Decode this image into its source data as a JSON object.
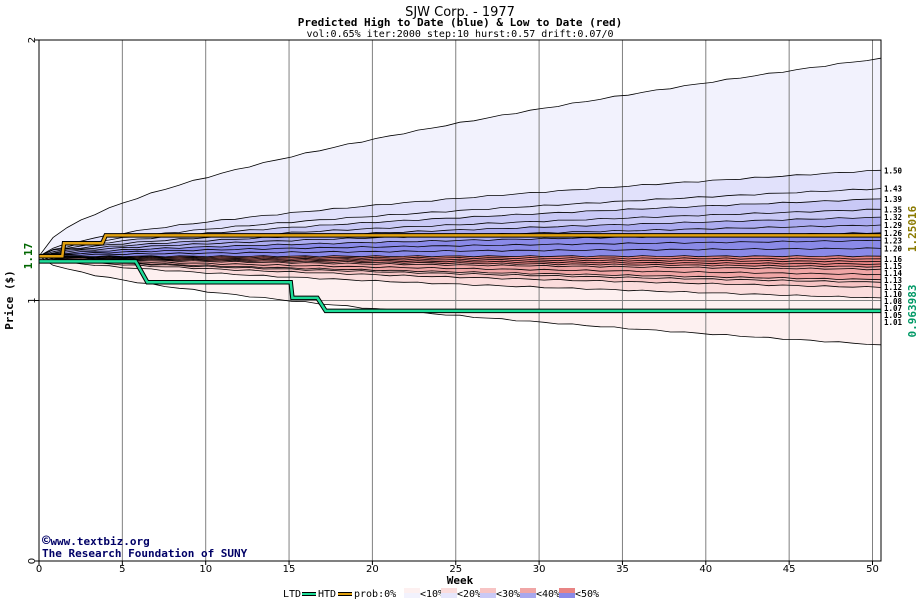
{
  "title": "SJW Corp. - 1977",
  "subtitle": "Predicted High to Date (blue) &  Low to Date (red)",
  "params": "vol:0.65% iter:2000 step:10 hurst:0.57 drift:0.07/0",
  "xlabel": "Week",
  "ylabel": "Price ($)",
  "credit": {
    "copyright_symbol": "©",
    "site": "www.textbiz.org",
    "org": "The Research Foundation of SUNY"
  },
  "side_labels": {
    "start": "1.17",
    "high": "1.25016",
    "low": "0.963983"
  },
  "legend": {
    "ltd": "LTD",
    "htd": "HTD",
    "prob": "prob:0%",
    "items": [
      "<10%",
      "<20%",
      "<30%",
      "<40%",
      "<50%"
    ]
  },
  "colors": {
    "htd": "#1edc98",
    "ltd": "#e0a010",
    "grid": "#808080",
    "blue_bands": [
      "#f2f2fd",
      "#e1e1fb",
      "#c9c9f6",
      "#acacf0",
      "#8a8ae8"
    ],
    "red_bands": [
      "#fdf0f0",
      "#fbdcdc",
      "#f7c4c4",
      "#f0a6a6",
      "#e88484"
    ]
  },
  "chart_data": {
    "type": "area",
    "xlim": [
      0,
      50
    ],
    "ylim": [
      0,
      2
    ],
    "x_ticks": [
      0,
      5,
      10,
      15,
      20,
      25,
      30,
      35,
      40,
      45,
      50
    ],
    "y_ticks": [
      0,
      1,
      2
    ],
    "start_price": 1.17,
    "high_quantiles": [
      {
        "end": 1.93
      },
      {
        "end": 1.5,
        "label": "1.50"
      },
      {
        "end": 1.43,
        "label": "1.43"
      },
      {
        "end": 1.39,
        "label": "1.39"
      },
      {
        "end": 1.35,
        "label": "1.35"
      },
      {
        "end": 1.32,
        "label": "1.32"
      },
      {
        "end": 1.29,
        "label": "1.29"
      },
      {
        "end": 1.26,
        "label": "1.26"
      },
      {
        "end": 1.23,
        "label": "1.23"
      },
      {
        "end": 1.2,
        "label": "1.20"
      },
      {
        "end": 1.17
      }
    ],
    "low_quantiles": [
      {
        "end": 1.16,
        "label": "1.16"
      },
      {
        "end": 1.15,
        "label": "1.15"
      },
      {
        "end": 1.14,
        "label": "1.14"
      },
      {
        "end": 1.13,
        "label": "1.13"
      },
      {
        "end": 1.12,
        "label": "1.12"
      },
      {
        "end": 1.1,
        "label": "1.10"
      },
      {
        "end": 1.08,
        "label": "1.08"
      },
      {
        "end": 1.07,
        "label": "1.07"
      },
      {
        "end": 1.05,
        "label": "1.05"
      },
      {
        "end": 1.01,
        "label": "1.01"
      },
      {
        "end": 0.83
      }
    ],
    "high_to_date": {
      "x": [
        0,
        1.4,
        1.5,
        3.8,
        4,
        50.5
      ],
      "y": [
        1.17,
        1.17,
        1.22,
        1.22,
        1.25,
        1.25
      ]
    },
    "low_to_date": {
      "x": [
        0,
        5.8,
        6.5,
        15.1,
        15.2,
        16.7,
        17.2,
        50.5
      ],
      "y": [
        1.15,
        1.15,
        1.07,
        1.07,
        1.01,
        1.01,
        0.96,
        0.96
      ]
    }
  }
}
